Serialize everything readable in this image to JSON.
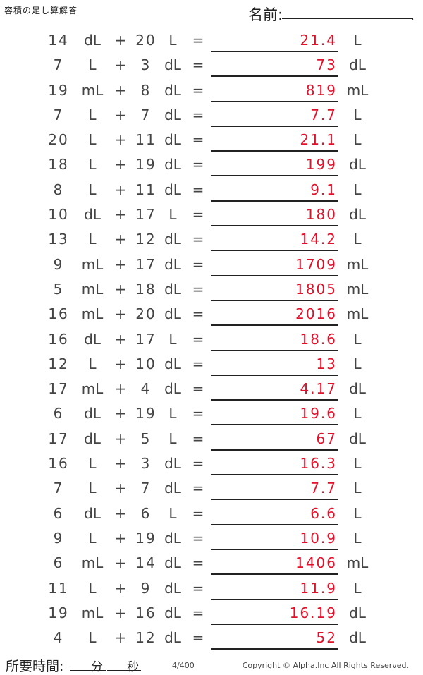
{
  "header": {
    "title": "容積の足し算解答",
    "name_label": "名前:",
    "name_dot": "."
  },
  "problems": [
    {
      "a": "14",
      "ua": "dL",
      "b": "20",
      "ub": "L",
      "ans": "21.4",
      "ur": "L"
    },
    {
      "a": "7",
      "ua": "L",
      "b": "3",
      "ub": "dL",
      "ans": "73",
      "ur": "dL"
    },
    {
      "a": "19",
      "ua": "mL",
      "b": "8",
      "ub": "dL",
      "ans": "819",
      "ur": "mL"
    },
    {
      "a": "7",
      "ua": "L",
      "b": "7",
      "ub": "dL",
      "ans": "7.7",
      "ur": "L"
    },
    {
      "a": "20",
      "ua": "L",
      "b": "11",
      "ub": "dL",
      "ans": "21.1",
      "ur": "L"
    },
    {
      "a": "18",
      "ua": "L",
      "b": "19",
      "ub": "dL",
      "ans": "199",
      "ur": "dL"
    },
    {
      "a": "8",
      "ua": "L",
      "b": "11",
      "ub": "dL",
      "ans": "9.1",
      "ur": "L"
    },
    {
      "a": "10",
      "ua": "dL",
      "b": "17",
      "ub": "L",
      "ans": "180",
      "ur": "dL"
    },
    {
      "a": "13",
      "ua": "L",
      "b": "12",
      "ub": "dL",
      "ans": "14.2",
      "ur": "L"
    },
    {
      "a": "9",
      "ua": "mL",
      "b": "17",
      "ub": "dL",
      "ans": "1709",
      "ur": "mL"
    },
    {
      "a": "5",
      "ua": "mL",
      "b": "18",
      "ub": "dL",
      "ans": "1805",
      "ur": "mL"
    },
    {
      "a": "16",
      "ua": "mL",
      "b": "20",
      "ub": "dL",
      "ans": "2016",
      "ur": "mL"
    },
    {
      "a": "16",
      "ua": "dL",
      "b": "17",
      "ub": "L",
      "ans": "18.6",
      "ur": "L"
    },
    {
      "a": "12",
      "ua": "L",
      "b": "10",
      "ub": "dL",
      "ans": "13",
      "ur": "L"
    },
    {
      "a": "17",
      "ua": "mL",
      "b": "4",
      "ub": "dL",
      "ans": "4.17",
      "ur": "dL"
    },
    {
      "a": "6",
      "ua": "dL",
      "b": "19",
      "ub": "L",
      "ans": "19.6",
      "ur": "L"
    },
    {
      "a": "17",
      "ua": "dL",
      "b": "5",
      "ub": "L",
      "ans": "67",
      "ur": "dL"
    },
    {
      "a": "16",
      "ua": "L",
      "b": "3",
      "ub": "dL",
      "ans": "16.3",
      "ur": "L"
    },
    {
      "a": "7",
      "ua": "L",
      "b": "7",
      "ub": "dL",
      "ans": "7.7",
      "ur": "L"
    },
    {
      "a": "6",
      "ua": "dL",
      "b": "6",
      "ub": "L",
      "ans": "6.6",
      "ur": "L"
    },
    {
      "a": "9",
      "ua": "L",
      "b": "19",
      "ub": "dL",
      "ans": "10.9",
      "ur": "L"
    },
    {
      "a": "6",
      "ua": "mL",
      "b": "14",
      "ub": "dL",
      "ans": "1406",
      "ur": "mL"
    },
    {
      "a": "11",
      "ua": "L",
      "b": "9",
      "ub": "dL",
      "ans": "11.9",
      "ur": "L"
    },
    {
      "a": "19",
      "ua": "mL",
      "b": "16",
      "ub": "dL",
      "ans": "16.19",
      "ur": "dL"
    },
    {
      "a": "4",
      "ua": "L",
      "b": "12",
      "ub": "dL",
      "ans": "52",
      "ur": "dL"
    }
  ],
  "symbols": {
    "plus": "+",
    "equals": "="
  },
  "footer": {
    "time_label": "所要時間:",
    "minutes_label": "分",
    "seconds_label": "秒",
    "page": "4/400",
    "copyright": "Copyright © Alpha.Inc All Rights Reserved."
  },
  "colors": {
    "answer": "#e0112b",
    "text": "#444444"
  }
}
